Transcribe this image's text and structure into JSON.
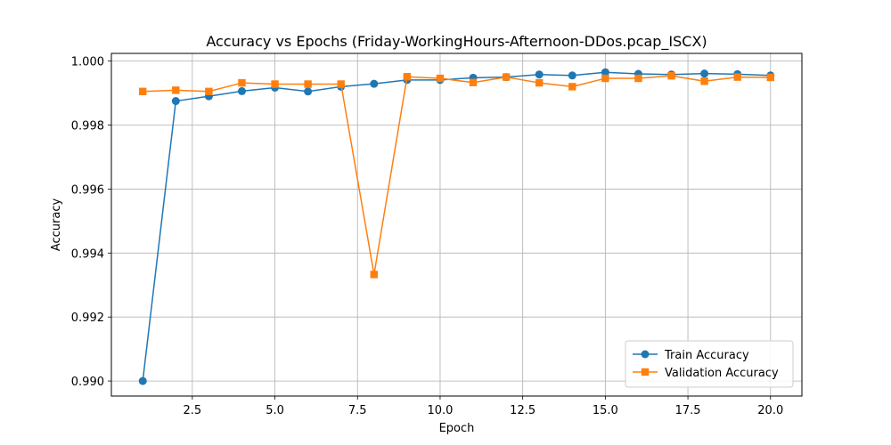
{
  "chart_data": {
    "type": "line",
    "title": "Accuracy vs Epochs (Friday-WorkingHours-Afternoon-DDos.pcap_ISCX)",
    "xlabel": "Epoch",
    "ylabel": "Accuracy",
    "xlim": [
      0.05,
      20.95
    ],
    "ylim": [
      0.98953,
      1.00024
    ],
    "xticks": [
      2.5,
      5.0,
      7.5,
      10.0,
      12.5,
      15.0,
      17.5,
      20.0
    ],
    "xtick_labels": [
      "2.5",
      "5.0",
      "7.5",
      "10.0",
      "12.5",
      "15.0",
      "17.5",
      "20.0"
    ],
    "yticks": [
      0.99,
      0.992,
      0.994,
      0.996,
      0.998,
      1.0
    ],
    "ytick_labels": [
      "0.990",
      "0.992",
      "0.994",
      "0.996",
      "0.998",
      "1.000"
    ],
    "grid": true,
    "legend_position": "lower-right",
    "x": [
      1,
      2,
      3,
      4,
      5,
      6,
      7,
      8,
      9,
      10,
      11,
      12,
      13,
      14,
      15,
      16,
      17,
      18,
      19,
      20
    ],
    "series": [
      {
        "name": "Train Accuracy",
        "color": "#1f77b4",
        "marker": "circle",
        "values": [
          0.99,
          0.99875,
          0.9989,
          0.99906,
          0.99917,
          0.99905,
          0.9992,
          0.99929,
          0.99941,
          0.99941,
          0.99948,
          0.9995,
          0.99958,
          0.99955,
          0.99965,
          0.9996,
          0.99958,
          0.99961,
          0.99959,
          0.99955
        ]
      },
      {
        "name": "Validation Accuracy",
        "color": "#ff7f0e",
        "marker": "square",
        "values": [
          0.99905,
          0.99909,
          0.99905,
          0.99932,
          0.99928,
          0.99928,
          0.99928,
          0.99333,
          0.99951,
          0.99946,
          0.99933,
          0.9995,
          0.99932,
          0.9992,
          0.99946,
          0.99946,
          0.99954,
          0.99937,
          0.9995,
          0.99949
        ]
      }
    ]
  }
}
